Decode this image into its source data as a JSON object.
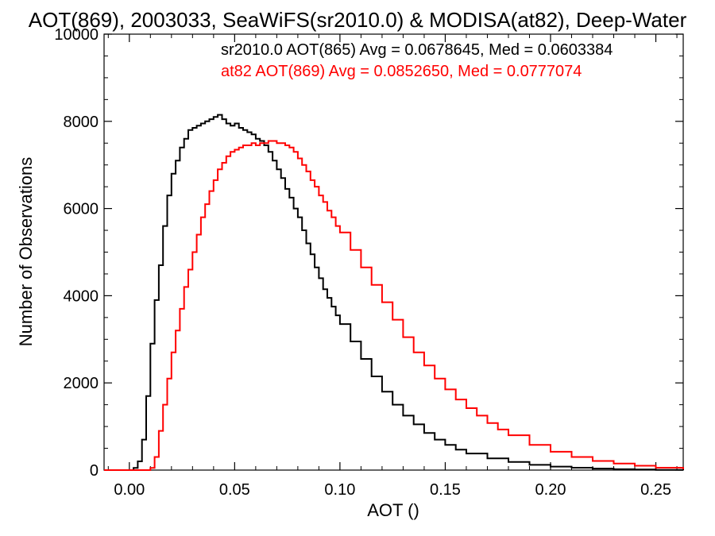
{
  "chart_data": {
    "type": "line",
    "title": "AOT(869), 2003033, SeaWiFS(sr2010.0) & MODISA(at82), Deep-Water",
    "xlabel": "AOT ()",
    "ylabel": "Number of Observations",
    "xlim": [
      -0.012,
      0.263
    ],
    "ylim": [
      0,
      10000
    ],
    "x_ticks": [
      "0.00",
      "0.05",
      "0.10",
      "0.15",
      "0.20",
      "0.25"
    ],
    "y_ticks": [
      "0",
      "2000",
      "4000",
      "6000",
      "8000",
      "10000"
    ],
    "grid": false,
    "legend_placement": "top-right",
    "annotations": [
      {
        "text": "sr2010.0 AOT(865) Avg = 0.0678645, Med = 0.0603384",
        "color": "#000000"
      },
      {
        "text": "at82 AOT(869) Avg = 0.0852650, Med = 0.0777074",
        "color": "#ff0000"
      }
    ],
    "series": [
      {
        "color": "#000000",
        "x": [
          -0.012,
          0.0,
          0.002,
          0.004,
          0.006,
          0.008,
          0.01,
          0.012,
          0.014,
          0.016,
          0.018,
          0.02,
          0.022,
          0.024,
          0.026,
          0.028,
          0.03,
          0.032,
          0.034,
          0.036,
          0.038,
          0.04,
          0.042,
          0.044,
          0.046,
          0.048,
          0.05,
          0.052,
          0.054,
          0.056,
          0.058,
          0.06,
          0.062,
          0.064,
          0.066,
          0.068,
          0.07,
          0.072,
          0.074,
          0.076,
          0.078,
          0.08,
          0.082,
          0.084,
          0.086,
          0.088,
          0.09,
          0.092,
          0.094,
          0.096,
          0.098,
          0.1,
          0.105,
          0.11,
          0.115,
          0.12,
          0.125,
          0.13,
          0.135,
          0.14,
          0.145,
          0.15,
          0.155,
          0.16,
          0.17,
          0.18,
          0.19,
          0.2,
          0.21,
          0.22,
          0.23,
          0.24,
          0.25,
          0.263
        ],
        "values": [
          0,
          0,
          50,
          200,
          700,
          1700,
          2900,
          3900,
          4700,
          5600,
          6300,
          6800,
          7100,
          7400,
          7600,
          7800,
          7850,
          7900,
          7950,
          8000,
          8050,
          8100,
          8150,
          8050,
          7950,
          7900,
          7950,
          7850,
          7800,
          7750,
          7700,
          7600,
          7550,
          7450,
          7300,
          7100,
          6900,
          6700,
          6450,
          6250,
          6000,
          5800,
          5500,
          5200,
          4950,
          4650,
          4400,
          4150,
          3950,
          3750,
          3550,
          3350,
          2950,
          2550,
          2150,
          1800,
          1500,
          1250,
          1050,
          850,
          700,
          580,
          470,
          380,
          270,
          185,
          120,
          80,
          55,
          35,
          20,
          12,
          6,
          0
        ]
      },
      {
        "color": "#ff0000",
        "x": [
          -0.012,
          0.0,
          0.004,
          0.006,
          0.008,
          0.01,
          0.012,
          0.014,
          0.016,
          0.018,
          0.02,
          0.022,
          0.024,
          0.026,
          0.028,
          0.03,
          0.032,
          0.034,
          0.036,
          0.038,
          0.04,
          0.042,
          0.044,
          0.046,
          0.048,
          0.05,
          0.052,
          0.054,
          0.056,
          0.058,
          0.06,
          0.062,
          0.064,
          0.066,
          0.068,
          0.07,
          0.072,
          0.074,
          0.076,
          0.078,
          0.08,
          0.082,
          0.084,
          0.086,
          0.088,
          0.09,
          0.092,
          0.094,
          0.096,
          0.098,
          0.1,
          0.105,
          0.11,
          0.115,
          0.12,
          0.125,
          0.13,
          0.135,
          0.14,
          0.145,
          0.15,
          0.155,
          0.16,
          0.165,
          0.17,
          0.175,
          0.18,
          0.19,
          0.2,
          0.21,
          0.22,
          0.23,
          0.24,
          0.25,
          0.263
        ],
        "values": [
          0,
          0,
          0,
          0,
          0,
          50,
          300,
          900,
          1500,
          2100,
          2700,
          3200,
          3700,
          4200,
          4600,
          5000,
          5400,
          5800,
          6100,
          6400,
          6650,
          6900,
          7050,
          7200,
          7300,
          7350,
          7400,
          7450,
          7450,
          7500,
          7450,
          7500,
          7500,
          7550,
          7550,
          7500,
          7500,
          7450,
          7400,
          7300,
          7150,
          7000,
          6850,
          6650,
          6500,
          6300,
          6150,
          5950,
          5800,
          5600,
          5450,
          5050,
          4650,
          4250,
          3850,
          3450,
          3050,
          2700,
          2400,
          2100,
          1850,
          1620,
          1420,
          1250,
          1080,
          930,
          800,
          580,
          420,
          300,
          210,
          150,
          100,
          55,
          20
        ]
      }
    ]
  }
}
